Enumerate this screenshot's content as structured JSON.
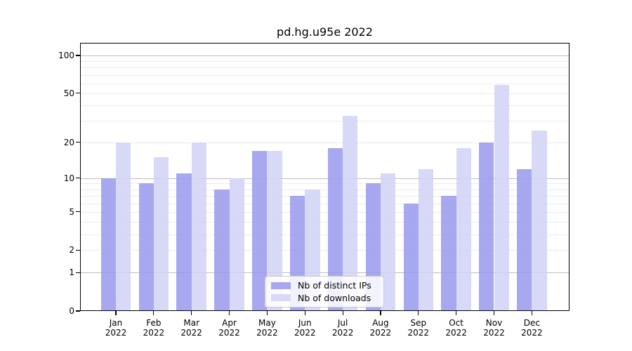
{
  "title": "pd.hg.u95e 2022",
  "chart_data": {
    "type": "bar",
    "title": "pd.hg.u95e 2022",
    "categories": [
      "Jan 2022",
      "Feb 2022",
      "Mar 2022",
      "Apr 2022",
      "May 2022",
      "Jun 2022",
      "Jul 2022",
      "Aug 2022",
      "Sep 2022",
      "Oct 2022",
      "Nov 2022",
      "Dec 2022"
    ],
    "series": [
      {
        "name": "Nb of distinct IPs",
        "color": "#a8a8f0",
        "values": [
          10,
          9,
          11,
          8,
          17,
          7,
          18,
          9,
          6,
          7,
          20,
          12
        ]
      },
      {
        "name": "Nb of downloads",
        "color": "#d8d8f7",
        "values": [
          20,
          15,
          20,
          10,
          17,
          8,
          33,
          11,
          12,
          18,
          58,
          25
        ]
      }
    ],
    "xlabel": "",
    "ylabel": "",
    "yscale": "log10(1+y)",
    "yticks": [
      0,
      1,
      2,
      5,
      10,
      20,
      50,
      100
    ],
    "ylim": [
      0,
      126
    ],
    "grid": "horizontal",
    "legend_position": "bottom-center-inside"
  },
  "colors": {
    "bar_distinct_ips": "#a8a8f0",
    "bar_downloads": "#d8d8f7",
    "grid_minor": "#ebebeb",
    "grid_major": "#bdbdbd",
    "axis": "#000000",
    "legend_border": "#cccccc"
  }
}
